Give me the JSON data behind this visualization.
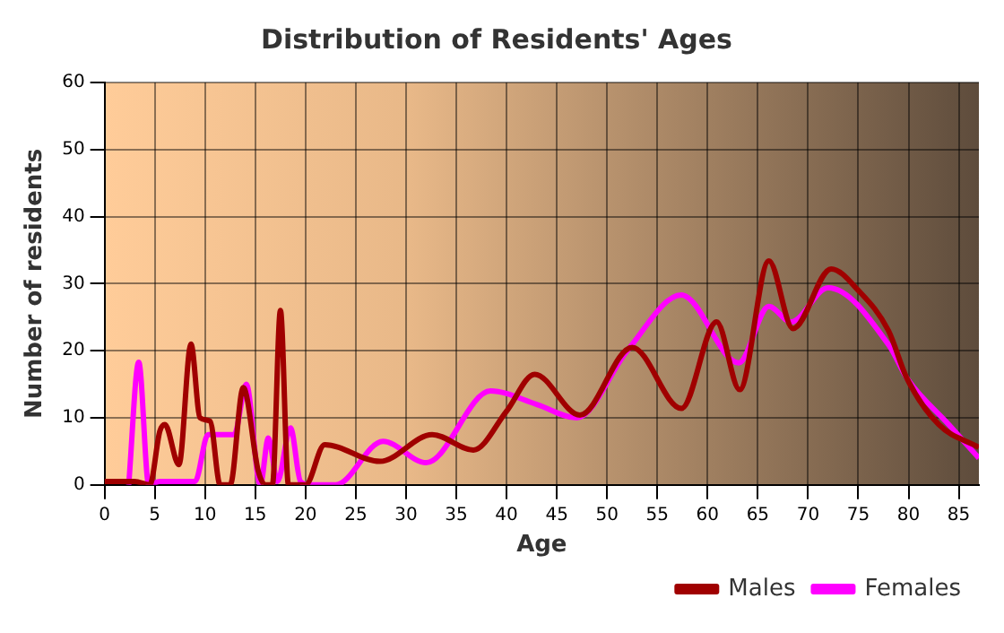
{
  "chart_data": {
    "type": "line",
    "title": "Distribution of Residents' Ages",
    "xlabel": "Age",
    "ylabel": "Number of residents",
    "xlim": [
      0,
      87
    ],
    "xticks": [
      0,
      5,
      10,
      15,
      20,
      25,
      30,
      35,
      40,
      45,
      50,
      55,
      60,
      65,
      70,
      75,
      80,
      85
    ],
    "ylim": [
      0,
      60
    ],
    "yticks": [
      0,
      10,
      20,
      30,
      40,
      50,
      60
    ],
    "grid": true,
    "legend": "bottom",
    "marker": "none",
    "line_style": "solid",
    "series": [
      {
        "name": "Males",
        "color": "#a00000",
        "x": [
          0,
          3,
          4.5,
          5.5,
          6,
          7.4,
          8.6,
          9.5,
          10.5,
          11.5,
          12.5,
          13.8,
          15.3,
          16,
          16.7,
          17.5,
          18.3,
          20,
          21.9,
          27.4,
          32.6,
          36.7,
          40,
          42.8,
          47.3,
          52.5,
          57.4,
          60.9,
          63.2,
          66.1,
          68.5,
          72.3,
          75,
          78,
          79.8,
          83,
          87
        ],
        "values": [
          0.5,
          0.5,
          0,
          8,
          9,
          3,
          21,
          10,
          9.5,
          0,
          0,
          14.5,
          2,
          0,
          0,
          26,
          0,
          0,
          6,
          3.5,
          7.5,
          5.2,
          11,
          16.5,
          10.4,
          20.5,
          11.4,
          24.3,
          14.2,
          33.4,
          23.3,
          32.2,
          29,
          23,
          16,
          9,
          5.6
        ]
      },
      {
        "name": "Females",
        "color": "#ff00ff",
        "x": [
          2.4,
          3.4,
          4.4,
          5.5,
          9,
          10.3,
          12.9,
          14.1,
          15.5,
          16.3,
          17.2,
          18.5,
          19.5,
          20.5,
          23,
          27.7,
          32,
          38.4,
          43,
          47,
          52,
          57.4,
          63.1,
          66.1,
          68.3,
          72,
          78.1,
          79.8,
          84,
          87
        ],
        "values": [
          0,
          18.3,
          0,
          0.5,
          0.5,
          7.5,
          7.5,
          15,
          0,
          7,
          0.5,
          8.5,
          0.5,
          0,
          0,
          6.5,
          3.3,
          14,
          12,
          10,
          20,
          28.3,
          18.2,
          26.6,
          24.3,
          29.4,
          20.7,
          16,
          9,
          4
        ]
      }
    ]
  }
}
